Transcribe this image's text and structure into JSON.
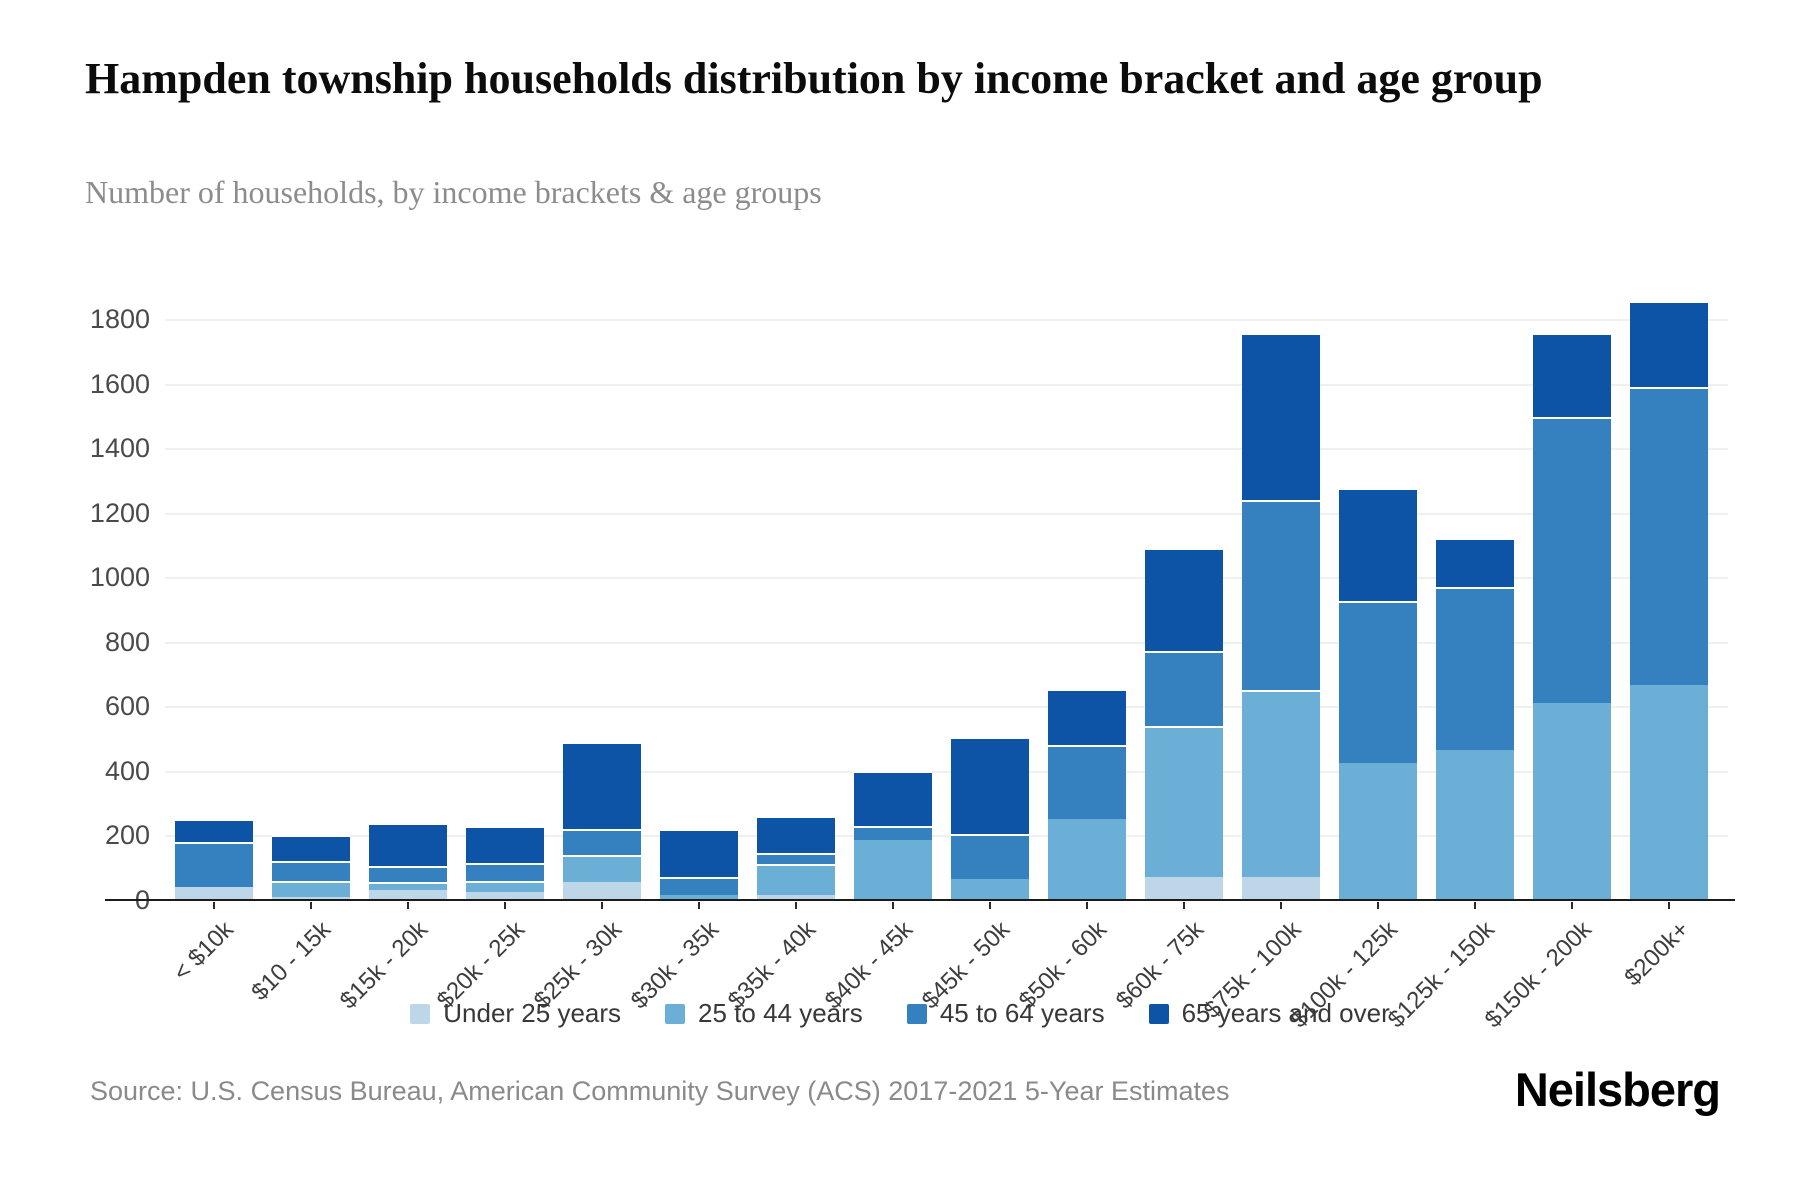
{
  "header": {
    "title": "Hampden township households distribution by income bracket and age group",
    "subtitle": "Number of households, by income brackets & age groups"
  },
  "footer": {
    "source": "Source: U.S. Census Bureau, American Community Survey (ACS) 2017-2021 5-Year Estimates",
    "brand": "Neilsberg"
  },
  "chart_data": {
    "type": "bar",
    "stacked": true,
    "title": "Hampden township households distribution by income bracket and age group",
    "subtitle": "Number of households, by income brackets & age groups",
    "xlabel": "",
    "ylabel": "",
    "ylim": [
      0,
      1870
    ],
    "yticks": [
      0,
      200,
      400,
      600,
      800,
      1000,
      1200,
      1400,
      1600,
      1800
    ],
    "grid": true,
    "legend_position": "bottom",
    "categories": [
      "< $10k",
      "$10 - 15k",
      "$15k - 20k",
      "$20k - 25k",
      "$25k - 30k",
      "$30k - 35k",
      "$35k - 40k",
      "$40k - 45k",
      "$45k - 50k",
      "$50k - 60k",
      "$60k - 75k",
      "$75k - 100k",
      "$100k - 125k",
      "$125k - 150k",
      "$150k - 200k",
      "$200k+"
    ],
    "series": [
      {
        "name": "Under 25 years",
        "color": "#bdd7e8",
        "values": [
          40,
          10,
          30,
          25,
          55,
          0,
          15,
          0,
          0,
          0,
          70,
          70,
          0,
          0,
          0,
          0
        ]
      },
      {
        "name": "25 to 44 years",
        "color": "#6baed6",
        "values": [
          0,
          50,
          25,
          35,
          85,
          15,
          95,
          185,
          65,
          250,
          470,
          580,
          425,
          465,
          610,
          665
        ]
      },
      {
        "name": "45 to 64 years",
        "color": "#3580bf",
        "values": [
          140,
          60,
          50,
          55,
          80,
          55,
          35,
          45,
          140,
          230,
          230,
          590,
          500,
          505,
          885,
          925
        ]
      },
      {
        "name": "65 years and over",
        "color": "#0d54a6",
        "values": [
          70,
          80,
          135,
          115,
          270,
          150,
          115,
          170,
          300,
          175,
          320,
          515,
          350,
          150,
          260,
          265
        ]
      }
    ],
    "totals": [
      250,
      200,
      240,
      230,
      490,
      220,
      260,
      400,
      505,
      655,
      1090,
      1755,
      1275,
      1120,
      1755,
      1855
    ]
  }
}
